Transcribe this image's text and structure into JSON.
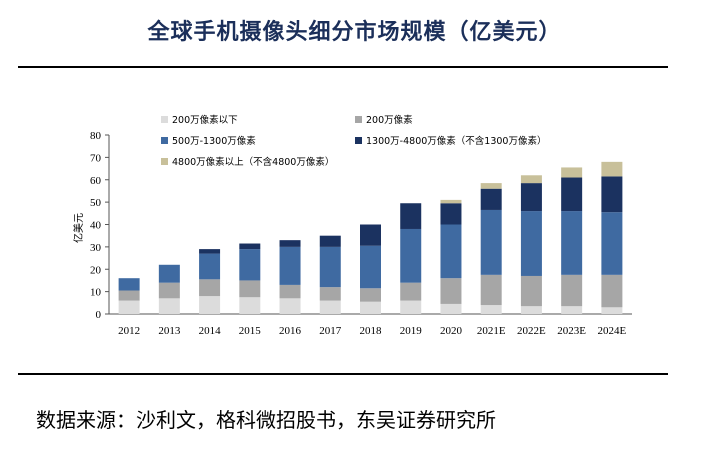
{
  "title": "全球手机摄像头细分市场规模（亿美元）",
  "source": "数据来源：沙利文，格科微招股书，东吴证券研究所",
  "chart_data": {
    "type": "bar",
    "stacked": true,
    "ylabel": "亿美元",
    "xlabel": "",
    "ylim": [
      0,
      80
    ],
    "yticks": [
      0,
      10,
      20,
      30,
      40,
      50,
      60,
      70,
      80
    ],
    "categories": [
      "2012",
      "2013",
      "2014",
      "2015",
      "2016",
      "2017",
      "2018",
      "2019",
      "2020",
      "2021E",
      "2022E",
      "2023E",
      "2024E"
    ],
    "series": [
      {
        "name": "200万像素以下",
        "color": "#dcdcdc",
        "values": [
          6,
          7,
          8,
          7.5,
          7,
          6,
          5.5,
          6,
          4.5,
          4,
          3.5,
          3.5,
          3
        ]
      },
      {
        "name": "200万像素",
        "color": "#a6a6a6",
        "values": [
          4.5,
          7,
          7.5,
          7.5,
          6,
          6,
          6,
          8,
          11.5,
          13.5,
          13.5,
          14,
          14.5
        ]
      },
      {
        "name": "500万-1300万像素",
        "color": "#3f6aa1",
        "values": [
          5.5,
          8,
          11.5,
          14,
          17,
          18,
          19,
          24,
          24,
          29,
          29,
          28.5,
          28
        ]
      },
      {
        "name": "1300万-4800万像素（不含1300万像素）",
        "color": "#1b3260",
        "values": [
          0,
          0,
          2,
          2.5,
          3,
          5,
          9.5,
          11.5,
          9.5,
          9.5,
          12.5,
          15,
          16
        ]
      },
      {
        "name": "4800万像素以上（不含4800万像素）",
        "color": "#c8c09a",
        "values": [
          0,
          0,
          0,
          0,
          0,
          0,
          0,
          0,
          1.5,
          2.5,
          3.5,
          4.5,
          6.5
        ]
      }
    ],
    "legend_position": "top-left",
    "grid": false
  }
}
